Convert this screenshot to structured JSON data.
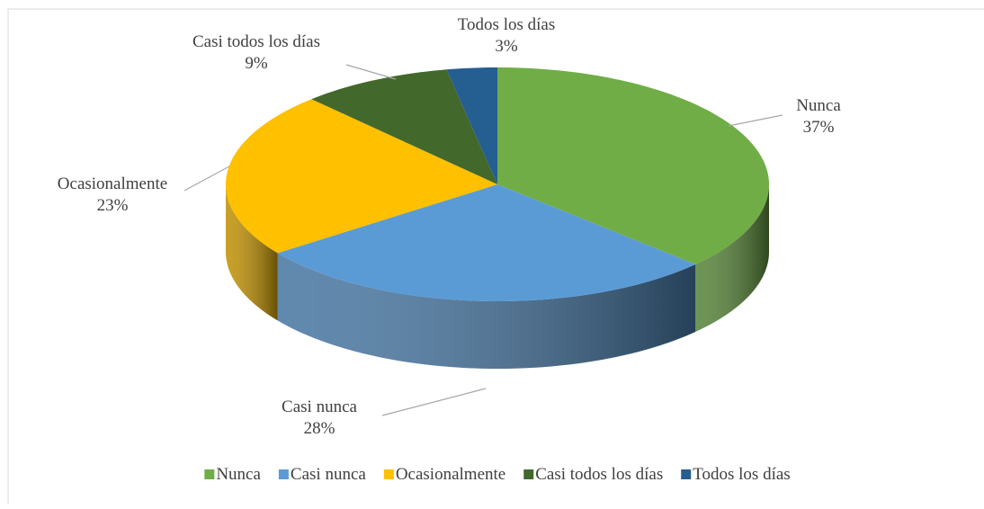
{
  "chart_data": {
    "type": "pie",
    "categories": [
      "Nunca",
      "Casi nunca",
      "Ocasionalmente",
      "Casi todos los días",
      "Todos los días"
    ],
    "values": [
      37,
      28,
      23,
      9,
      3
    ],
    "value_labels": [
      "37%",
      "28%",
      "23%",
      "9%",
      "3%"
    ],
    "colors": [
      "#70ad47",
      "#5b9bd5",
      "#ffc000",
      "#43682b",
      "#255e91"
    ],
    "legend": "bottom"
  }
}
